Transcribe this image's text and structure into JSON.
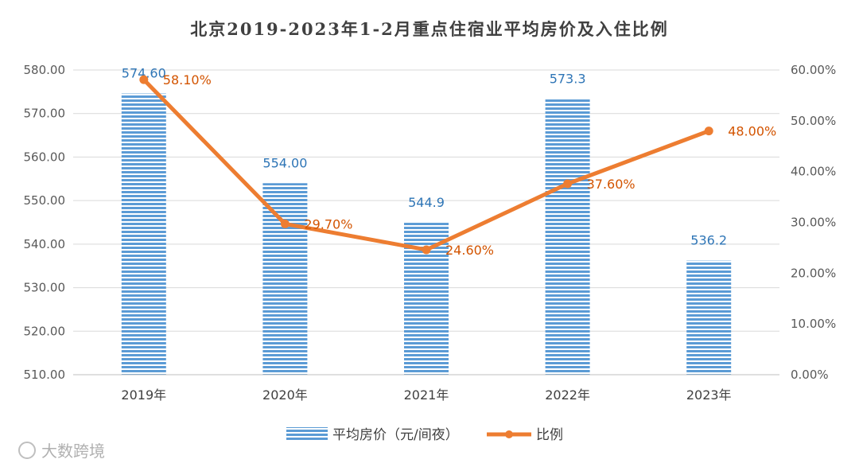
{
  "chart_data": {
    "type": "bar",
    "title": "北京2019-2023年1-2月重点住宿业平均房价及入住比例",
    "categories": [
      "2019年",
      "2020年",
      "2021年",
      "2022年",
      "2023年"
    ],
    "series": [
      {
        "name": "平均房价（元/间夜）",
        "type": "bar",
        "axis": "left",
        "values": [
          574.6,
          554.0,
          544.9,
          573.3,
          536.2
        ],
        "labels": [
          "574.60",
          "554.00",
          "544.9",
          "573.3",
          "536.2"
        ],
        "color": "#5b9bd5"
      },
      {
        "name": "比例",
        "type": "line",
        "axis": "right",
        "values": [
          58.1,
          29.7,
          24.6,
          37.6,
          48.0
        ],
        "labels": [
          "58.10%",
          "29.70%",
          "24.60%",
          "37.60%",
          "48.00%"
        ],
        "color": "#ed7d31"
      }
    ],
    "y_left": {
      "min": 510,
      "max": 580,
      "ticks": [
        "510.00",
        "520.00",
        "530.00",
        "540.00",
        "550.00",
        "560.00",
        "570.00",
        "580.00"
      ]
    },
    "y_right": {
      "min": 0,
      "max": 60,
      "ticks": [
        "0.00%",
        "10.00%",
        "20.00%",
        "30.00%",
        "40.00%",
        "50.00%",
        "60.00%"
      ]
    },
    "grid": true,
    "legend_position": "bottom"
  },
  "watermark": {
    "corner_text": "大数跨境"
  }
}
